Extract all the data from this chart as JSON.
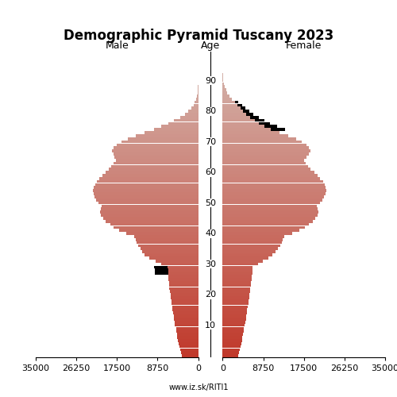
{
  "title": "Demographic Pyramid Tuscany 2023",
  "male_label": "Male",
  "female_label": "Female",
  "age_label": "Age",
  "source": "www.iz.sk/RITI1",
  "xlim": 35000,
  "age_ticks": [
    10,
    20,
    30,
    40,
    50,
    60,
    70,
    80,
    90
  ],
  "male": [
    3500,
    3700,
    3900,
    4100,
    4300,
    4400,
    4500,
    4600,
    4700,
    4800,
    5000,
    5100,
    5200,
    5300,
    5400,
    5500,
    5600,
    5700,
    5800,
    5900,
    6000,
    6100,
    6200,
    6300,
    6300,
    6400,
    6400,
    6500,
    6500,
    6600,
    8000,
    9200,
    10500,
    11500,
    12000,
    12500,
    13000,
    13200,
    13500,
    13800,
    15500,
    17000,
    18200,
    19000,
    20000,
    20500,
    21000,
    21200,
    21000,
    20800,
    21500,
    22000,
    22300,
    22500,
    22700,
    22500,
    22200,
    21800,
    21300,
    20700,
    20000,
    19300,
    18700,
    18200,
    17800,
    18000,
    18300,
    18600,
    18200,
    17600,
    16500,
    15200,
    13500,
    11500,
    9500,
    8000,
    6500,
    5200,
    3900,
    2900,
    2100,
    1500,
    1050,
    720,
    470,
    290,
    170,
    90,
    45,
    20,
    8,
    3,
    1,
    0,
    0,
    0,
    0,
    0,
    0,
    0
  ],
  "female": [
    3300,
    3500,
    3700,
    3900,
    4100,
    4200,
    4300,
    4400,
    4500,
    4600,
    4800,
    4900,
    5000,
    5100,
    5200,
    5300,
    5400,
    5500,
    5600,
    5700,
    5800,
    5900,
    6000,
    6100,
    6100,
    6200,
    6300,
    6400,
    6400,
    6500,
    7600,
    8700,
    9900,
    10800,
    11400,
    11900,
    12400,
    12700,
    13000,
    13300,
    15000,
    16500,
    17700,
    18500,
    19500,
    20000,
    20400,
    20700,
    20500,
    20300,
    21000,
    21500,
    21900,
    22200,
    22400,
    22200,
    22000,
    21600,
    21000,
    20400,
    19700,
    19000,
    18400,
    17900,
    17500,
    18000,
    18500,
    19000,
    18600,
    18000,
    17000,
    15800,
    14200,
    12200,
    10300,
    9000,
    7800,
    6900,
    6000,
    5100,
    4400,
    3800,
    3200,
    2600,
    2000,
    1500,
    1050,
    720,
    460,
    270,
    140,
    65,
    28,
    11,
    4,
    2,
    1,
    0,
    0,
    0
  ],
  "male_black": [
    3500,
    3700,
    3900,
    4100,
    4300,
    4400,
    4500,
    4600,
    4700,
    4800,
    5000,
    5100,
    5200,
    5300,
    5400,
    5500,
    5600,
    5700,
    5800,
    5900,
    6000,
    6100,
    6200,
    6300,
    6300,
    6400,
    6400,
    9000,
    10000,
    10500,
    11000,
    11500,
    12500,
    13000,
    12800,
    12500,
    13000,
    13200,
    13500,
    13800,
    15500,
    17000,
    18200,
    19000,
    20000,
    20500,
    21000,
    21200,
    21000,
    20800,
    21500,
    22000,
    22300,
    22500,
    22700,
    22500,
    22200,
    21800,
    21300,
    20700,
    20000,
    19300,
    18700,
    18200,
    17800,
    18000,
    18300,
    18600,
    18200,
    17600,
    16500,
    15200,
    13500,
    11500,
    9500,
    8000,
    6500,
    5200,
    3900,
    2900,
    2100,
    1500,
    1050,
    720,
    470,
    290,
    170,
    90,
    45,
    20,
    8,
    3,
    1,
    0,
    0,
    0,
    0,
    0,
    0,
    0
  ],
  "female_black": [
    3300,
    3500,
    3700,
    3900,
    4100,
    4200,
    4300,
    4400,
    4500,
    4600,
    4800,
    4900,
    5000,
    5100,
    5200,
    5300,
    5400,
    5500,
    5600,
    5700,
    5800,
    5900,
    6000,
    6100,
    6100,
    6200,
    6300,
    6400,
    6400,
    6500,
    7600,
    8700,
    9900,
    10800,
    11400,
    11900,
    12400,
    12700,
    13000,
    13300,
    15000,
    16500,
    17700,
    18500,
    19500,
    20000,
    20400,
    20700,
    20500,
    20300,
    21000,
    21500,
    21900,
    22200,
    22400,
    22200,
    22000,
    21600,
    21000,
    20400,
    19700,
    19000,
    18400,
    17900,
    17500,
    18000,
    18500,
    19000,
    18600,
    18000,
    17000,
    15800,
    14200,
    12200,
    10300,
    9000,
    9500,
    10500,
    11000,
    5100,
    4400,
    3800,
    3200,
    2600,
    2000,
    1500,
    1050,
    720,
    460,
    270,
    140,
    65,
    28,
    11,
    4,
    2,
    1,
    0,
    0,
    0
  ],
  "color_young": "#c0392b",
  "color_old": "#d4b8b0",
  "bar_height": 0.95,
  "background_color": "#ffffff",
  "title_fontsize": 12,
  "label_fontsize": 9,
  "tick_fontsize": 8,
  "source_fontsize": 7
}
